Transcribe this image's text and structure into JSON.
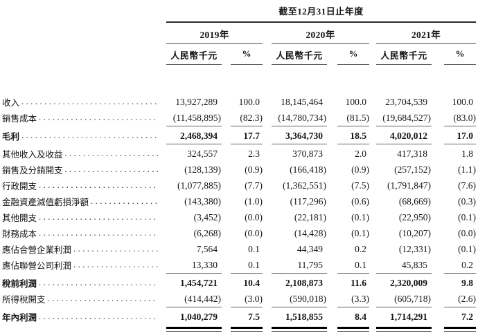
{
  "table": {
    "title": "截至12月31日止年度",
    "year_groups": [
      {
        "year": "2019年",
        "unit": "人民幣千元",
        "pct": "%"
      },
      {
        "year": "2020年",
        "unit": "人民幣千元",
        "pct": "%"
      },
      {
        "year": "2021年",
        "unit": "人民幣千元",
        "pct": "%"
      }
    ],
    "rows": [
      {
        "label": "收入",
        "values": [
          "13,927,289",
          "100.0",
          "18,145,464",
          "100.0",
          "23,704,539",
          "100.0"
        ]
      },
      {
        "label": "銷售成本",
        "values": [
          "(11,458,895)",
          "(82.3)",
          "(14,780,734)",
          "(81.5)",
          "(19,684,527)",
          "(83.0)"
        ],
        "rule_below": true
      },
      {
        "label": "毛利",
        "bold": true,
        "values": [
          "2,468,394",
          "17.7",
          "3,364,730",
          "18.5",
          "4,020,012",
          "17.0"
        ],
        "rule_below": true
      },
      {
        "label": "其他收入及收益",
        "values": [
          "324,557",
          "2.3",
          "370,873",
          "2.0",
          "417,318",
          "1.8"
        ]
      },
      {
        "label": "銷售及分銷開支",
        "values": [
          "(128,139)",
          "(0.9)",
          "(166,418)",
          "(0.9)",
          "(257,152)",
          "(1.1)"
        ]
      },
      {
        "label": "行政開支",
        "values": [
          "(1,077,885)",
          "(7.7)",
          "(1,362,551)",
          "(7.5)",
          "(1,791,847)",
          "(7.6)"
        ]
      },
      {
        "label": "金融資產減值虧損淨額",
        "values": [
          "(143,380)",
          "(1.0)",
          "(117,296)",
          "(0.6)",
          "(68,669)",
          "(0.3)"
        ]
      },
      {
        "label": "其他開支",
        "values": [
          "(3,452)",
          "(0.0)",
          "(22,181)",
          "(0.1)",
          "(22,950)",
          "(0.1)"
        ]
      },
      {
        "label": "財務成本",
        "values": [
          "(6,268)",
          "(0.0)",
          "(14,428)",
          "(0.1)",
          "(10,207)",
          "(0.0)"
        ]
      },
      {
        "label": "應佔合營企業利潤",
        "values": [
          "7,564",
          "0.1",
          "44,349",
          "0.2",
          "(12,331)",
          "(0.1)"
        ]
      },
      {
        "label": "應佔聯營公司利潤",
        "values": [
          "13,330",
          "0.1",
          "11,795",
          "0.1",
          "45,835",
          "0.2"
        ],
        "rule_below": true
      },
      {
        "label": "稅前利潤",
        "bold": true,
        "values": [
          "1,454,721",
          "10.4",
          "2,108,873",
          "11.6",
          "2,320,009",
          "9.8"
        ]
      },
      {
        "label": "所得稅開支",
        "values": [
          "(414,442)",
          "(3.0)",
          "(590,018)",
          "(3.3)",
          "(605,718)",
          "(2.6)"
        ],
        "rule_below": true
      },
      {
        "label": "年內利潤",
        "bold": true,
        "values": [
          "1,040,279",
          "7.5",
          "1,518,855",
          "8.4",
          "1,714,291",
          "7.2"
        ],
        "double_rule_below": true
      }
    ]
  }
}
